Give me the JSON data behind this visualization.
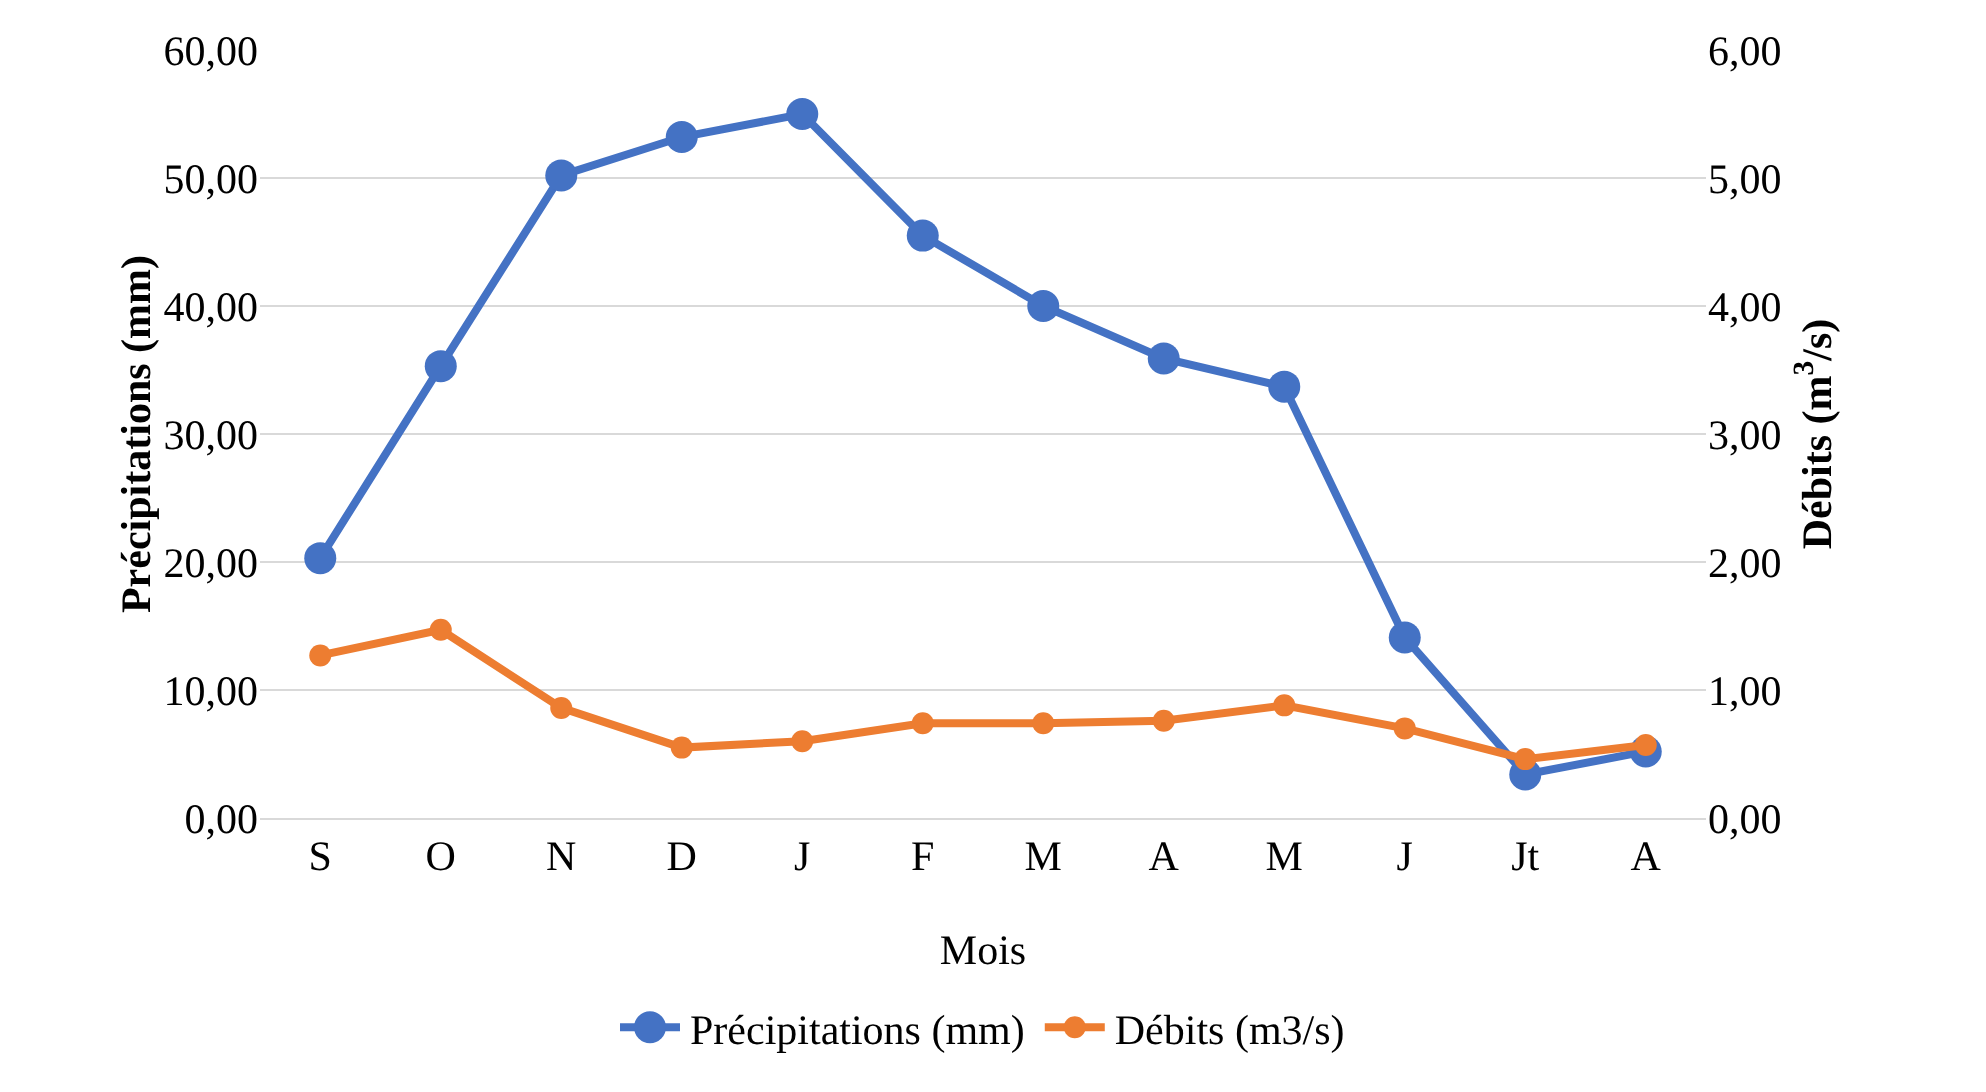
{
  "chart_data": {
    "type": "line",
    "xlabel": "Mois",
    "ylabel": "Précipitations (mm)",
    "y2label": "Débits (m$^{3}$/s)",
    "categories": [
      "S",
      "O",
      "N",
      "D",
      "J",
      "F",
      "M",
      "A",
      "M",
      "J",
      "Jt",
      "A"
    ],
    "series": [
      {
        "name": "Précipitations (mm)",
        "color": "#4472c4",
        "values": [
          20.3,
          35.3,
          50.2,
          53.2,
          55.0,
          45.5,
          40.0,
          35.9,
          33.7,
          14.1,
          3.4,
          5.2
        ]
      },
      {
        "name": "Débits (m3/s)",
        "color": "#ed7d31",
        "axis": "y2",
        "values": [
          1.27,
          1.47,
          0.86,
          0.55,
          0.6,
          0.74,
          0.74,
          0.76,
          0.88,
          0.7,
          0.46,
          0.57
        ]
      }
    ],
    "ylim": [
      0,
      60
    ],
    "yticks": [
      {
        "value": 0,
        "label": "0,00"
      },
      {
        "value": 10,
        "label": "10,00"
      },
      {
        "value": 20,
        "label": "20,00"
      },
      {
        "value": 30,
        "label": "30,00"
      },
      {
        "value": 40,
        "label": "40,00"
      },
      {
        "value": 50,
        "label": "50,00"
      },
      {
        "value": 60,
        "label": "60,00"
      }
    ],
    "y2lim": [
      0,
      6
    ],
    "y2ticks": [
      {
        "value": 0,
        "label": "0,00"
      },
      {
        "value": 1,
        "label": "1,00"
      },
      {
        "value": 2,
        "label": "2,00"
      },
      {
        "value": 3,
        "label": "3,00"
      },
      {
        "value": 4,
        "label": "4,00"
      },
      {
        "value": 5,
        "label": "5,00"
      },
      {
        "value": 6,
        "label": "6,00"
      }
    ],
    "grid": "y",
    "legend": "bottom",
    "marker": "circle",
    "line_style": "solid"
  }
}
